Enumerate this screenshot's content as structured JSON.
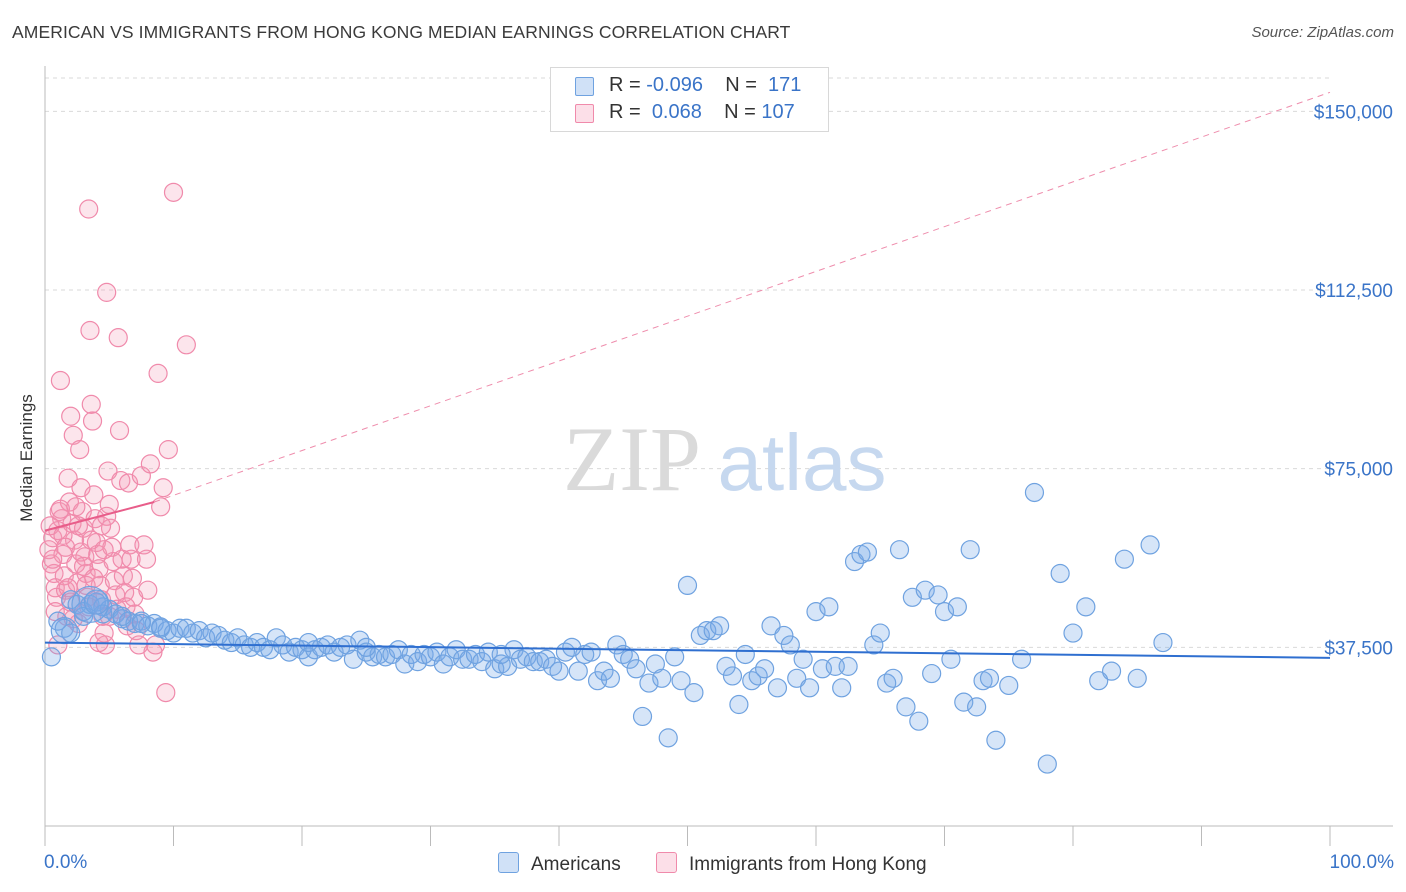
{
  "title": "AMERICAN VS IMMIGRANTS FROM HONG KONG MEDIAN EARNINGS CORRELATION CHART",
  "source": "Source: ZipAtlas.com",
  "watermark": {
    "zip": "ZIP",
    "atlas": "atlas"
  },
  "legend": {
    "r_label": "R =",
    "n_label": "N =",
    "rows": [
      {
        "name": "Americans",
        "r": "-0.096",
        "n": "171",
        "color": "#6fa2e0"
      },
      {
        "name": "Immigrants from Hong Kong",
        "r": "0.068",
        "n": "107",
        "color": "#f08aab"
      }
    ]
  },
  "colors": {
    "blue_fill": "rgba(120,168,232,0.30)",
    "blue_stroke": "#6fa2e0",
    "blue_line": "#2f6fd0",
    "pink_fill": "rgba(245,150,180,0.25)",
    "pink_stroke": "#f08aab",
    "pink_line": "#e85d8a",
    "axis_text": "#3a74c8",
    "grid": "#d9d9d9"
  },
  "chart_data": {
    "type": "scatter",
    "title": "AMERICAN VS IMMIGRANTS FROM HONG KONG MEDIAN EARNINGS CORRELATION CHART",
    "xlabel": "",
    "ylabel": "Median Earnings",
    "x_tick_labels": [
      "0.0%",
      "100.0%"
    ],
    "xlim": [
      0,
      100
    ],
    "ylim": [
      0,
      157000
    ],
    "y_ticks": [
      {
        "value": 37500,
        "label": "$37,500"
      },
      {
        "value": 75000,
        "label": "$75,000"
      },
      {
        "value": 112500,
        "label": "$112,500"
      },
      {
        "value": 150000,
        "label": "$150,000"
      }
    ],
    "grid": true,
    "legend_position": "top-center",
    "series": [
      {
        "name": "Americans",
        "trend": {
          "x0": 0,
          "y0": 38500,
          "x1": 100,
          "y1": 35300,
          "style": "solid"
        },
        "points": [
          [
            0.5,
            35500
          ],
          [
            1.5,
            41500
          ],
          [
            2,
            47500
          ],
          [
            2.5,
            46500
          ],
          [
            3,
            45000
          ],
          [
            3.5,
            46500
          ],
          [
            4,
            47000
          ],
          [
            4.5,
            46000
          ],
          [
            5,
            45500
          ],
          [
            5.5,
            44500
          ],
          [
            6,
            43500
          ],
          [
            6.5,
            43000
          ],
          [
            7,
            42500
          ],
          [
            7.5,
            43000
          ],
          [
            8,
            42000
          ],
          [
            8.5,
            42500
          ],
          [
            9,
            41500
          ],
          [
            9.5,
            41000
          ],
          [
            10,
            40500
          ],
          [
            10.5,
            41500
          ],
          [
            11,
            41500
          ],
          [
            11.5,
            40500
          ],
          [
            12,
            41000
          ],
          [
            12.5,
            39500
          ],
          [
            13,
            40500
          ],
          [
            13.5,
            40000
          ],
          [
            14,
            39000
          ],
          [
            14.5,
            38500
          ],
          [
            15,
            39500
          ],
          [
            15.5,
            38000
          ],
          [
            16,
            37500
          ],
          [
            16.5,
            38500
          ],
          [
            17,
            37500
          ],
          [
            17.5,
            37000
          ],
          [
            18,
            39500
          ],
          [
            18.5,
            38000
          ],
          [
            19,
            36500
          ],
          [
            19.5,
            37500
          ],
          [
            20,
            37000
          ],
          [
            20.5,
            35500
          ],
          [
            21,
            37000
          ],
          [
            21.5,
            37500
          ],
          [
            22,
            38000
          ],
          [
            22.5,
            36500
          ],
          [
            23,
            37500
          ],
          [
            23.5,
            38000
          ],
          [
            24,
            35000
          ],
          [
            24.5,
            39000
          ],
          [
            25,
            36500
          ],
          [
            25.5,
            35500
          ],
          [
            26,
            36000
          ],
          [
            26.5,
            35500
          ],
          [
            27,
            36000
          ],
          [
            27.5,
            37000
          ],
          [
            28,
            34000
          ],
          [
            28.5,
            36000
          ],
          [
            29,
            34500
          ],
          [
            29.5,
            36000
          ],
          [
            30,
            35500
          ],
          [
            30.5,
            36500
          ],
          [
            31,
            34000
          ],
          [
            31.5,
            35500
          ],
          [
            32,
            37000
          ],
          [
            32.5,
            35000
          ],
          [
            33,
            35000
          ],
          [
            33.5,
            36000
          ],
          [
            34,
            34500
          ],
          [
            34.5,
            36500
          ],
          [
            35,
            33000
          ],
          [
            35.5,
            34000
          ],
          [
            36,
            33500
          ],
          [
            36.5,
            37000
          ],
          [
            37,
            35000
          ],
          [
            37.5,
            35500
          ],
          [
            38,
            34500
          ],
          [
            38.5,
            34500
          ],
          [
            39,
            35000
          ],
          [
            39.5,
            33500
          ],
          [
            40,
            32500
          ],
          [
            40.5,
            36500
          ],
          [
            41,
            37500
          ],
          [
            41.5,
            32500
          ],
          [
            42,
            36000
          ],
          [
            42.5,
            36500
          ],
          [
            43,
            30500
          ],
          [
            43.5,
            32500
          ],
          [
            44,
            31000
          ],
          [
            44.5,
            38000
          ],
          [
            45,
            36000
          ],
          [
            45.5,
            35000
          ],
          [
            46,
            33000
          ],
          [
            46.5,
            23000
          ],
          [
            47,
            30000
          ],
          [
            47.5,
            34000
          ],
          [
            48,
            31000
          ],
          [
            48.5,
            18500
          ],
          [
            49,
            35500
          ],
          [
            49.5,
            30500
          ],
          [
            50,
            50500
          ],
          [
            50.5,
            28000
          ],
          [
            51,
            40000
          ],
          [
            51.5,
            41000
          ],
          [
            52,
            41000
          ],
          [
            52.5,
            42000
          ],
          [
            53,
            33500
          ],
          [
            53.5,
            31500
          ],
          [
            54,
            25500
          ],
          [
            54.5,
            36000
          ],
          [
            55,
            30500
          ],
          [
            55.5,
            31500
          ],
          [
            56,
            33000
          ],
          [
            56.5,
            42000
          ],
          [
            57,
            29000
          ],
          [
            57.5,
            40000
          ],
          [
            58,
            38000
          ],
          [
            58.5,
            31000
          ],
          [
            59,
            35000
          ],
          [
            59.5,
            29000
          ],
          [
            60,
            45000
          ],
          [
            60.5,
            33000
          ],
          [
            61,
            46000
          ],
          [
            61.5,
            33500
          ],
          [
            62,
            29000
          ],
          [
            62.5,
            33500
          ],
          [
            63,
            55500
          ],
          [
            63.5,
            57000
          ],
          [
            64,
            57500
          ],
          [
            64.5,
            38000
          ],
          [
            65,
            40500
          ],
          [
            65.5,
            30000
          ],
          [
            66,
            31000
          ],
          [
            66.5,
            58000
          ],
          [
            67,
            25000
          ],
          [
            67.5,
            48000
          ],
          [
            68,
            22000
          ],
          [
            68.5,
            49500
          ],
          [
            69,
            32000
          ],
          [
            69.5,
            48500
          ],
          [
            70,
            45000
          ],
          [
            70.5,
            35000
          ],
          [
            71,
            46000
          ],
          [
            71.5,
            26000
          ],
          [
            72,
            58000
          ],
          [
            72.5,
            25000
          ],
          [
            73,
            30500
          ],
          [
            73.5,
            31000
          ],
          [
            74,
            18000
          ],
          [
            75,
            29500
          ],
          [
            76,
            35000
          ],
          [
            77,
            70000
          ],
          [
            78,
            13000
          ],
          [
            79,
            53000
          ],
          [
            80,
            40500
          ],
          [
            81,
            46000
          ],
          [
            82,
            30500
          ],
          [
            83,
            32500
          ],
          [
            84,
            56000
          ],
          [
            85,
            31000
          ],
          [
            86,
            59000
          ],
          [
            87,
            38500
          ],
          [
            3,
            44000
          ],
          [
            4.5,
            44500
          ],
          [
            6,
            44000
          ],
          [
            7.5,
            42500
          ],
          [
            9,
            41800
          ],
          [
            2,
            40500
          ],
          [
            1,
            43000
          ],
          [
            20.5,
            38500
          ],
          [
            25,
            37500
          ],
          [
            35.5,
            36000
          ]
        ]
      },
      {
        "name": "Immigrants from Hong Kong",
        "trend": {
          "x0": 0,
          "y0": 62000,
          "x1": 8.5,
          "y1": 68000,
          "x2": 100,
          "y2": 154000,
          "style": "solid then dashed"
        },
        "points": [
          [
            0.3,
            58000
          ],
          [
            0.5,
            55000
          ],
          [
            0.6,
            60500
          ],
          [
            0.7,
            53000
          ],
          [
            0.8,
            50000
          ],
          [
            0.9,
            48000
          ],
          [
            1,
            62000
          ],
          [
            1.1,
            66000
          ],
          [
            1.2,
            93500
          ],
          [
            1.3,
            64500
          ],
          [
            1.4,
            57000
          ],
          [
            1.5,
            52500
          ],
          [
            1.6,
            49500
          ],
          [
            1.7,
            44000
          ],
          [
            1.8,
            73000
          ],
          [
            1.9,
            68000
          ],
          [
            2,
            86000
          ],
          [
            2.1,
            63500
          ],
          [
            2.2,
            82000
          ],
          [
            2.3,
            60000
          ],
          [
            2.4,
            55000
          ],
          [
            2.5,
            51000
          ],
          [
            2.6,
            42500
          ],
          [
            2.7,
            79000
          ],
          [
            2.8,
            71000
          ],
          [
            2.9,
            66000
          ],
          [
            3,
            62500
          ],
          [
            3.1,
            56500
          ],
          [
            3.2,
            53000
          ],
          [
            3.3,
            48000
          ],
          [
            3.4,
            129500
          ],
          [
            3.5,
            104000
          ],
          [
            3.6,
            88500
          ],
          [
            3.7,
            85000
          ],
          [
            3.8,
            69500
          ],
          [
            3.9,
            64500
          ],
          [
            4,
            59500
          ],
          [
            4.1,
            57000
          ],
          [
            4.2,
            54000
          ],
          [
            4.3,
            50500
          ],
          [
            4.4,
            47500
          ],
          [
            4.5,
            44000
          ],
          [
            4.6,
            40500
          ],
          [
            4.7,
            38000
          ],
          [
            4.8,
            112000
          ],
          [
            4.9,
            74500
          ],
          [
            5,
            67500
          ],
          [
            5.1,
            62500
          ],
          [
            5.2,
            58500
          ],
          [
            5.3,
            55500
          ],
          [
            5.4,
            51500
          ],
          [
            5.5,
            48500
          ],
          [
            5.6,
            45500
          ],
          [
            5.7,
            102500
          ],
          [
            5.8,
            83000
          ],
          [
            5.9,
            72500
          ],
          [
            6,
            56000
          ],
          [
            6.1,
            52500
          ],
          [
            6.2,
            49000
          ],
          [
            6.3,
            46000
          ],
          [
            6.4,
            42000
          ],
          [
            6.5,
            72000
          ],
          [
            6.6,
            59000
          ],
          [
            6.7,
            56000
          ],
          [
            6.8,
            52000
          ],
          [
            6.9,
            48000
          ],
          [
            7,
            44500
          ],
          [
            7.1,
            41000
          ],
          [
            7.3,
            38000
          ],
          [
            7.5,
            73500
          ],
          [
            7.7,
            59000
          ],
          [
            7.9,
            56000
          ],
          [
            8,
            49500
          ],
          [
            8.2,
            76000
          ],
          [
            8.4,
            36500
          ],
          [
            8.6,
            38000
          ],
          [
            8.8,
            95000
          ],
          [
            9,
            67000
          ],
          [
            9.2,
            71000
          ],
          [
            9.4,
            28000
          ],
          [
            9.6,
            79000
          ],
          [
            10,
            133000
          ],
          [
            11,
            101000
          ],
          [
            0.4,
            63000
          ],
          [
            0.6,
            56000
          ],
          [
            0.8,
            45000
          ],
          [
            1,
            38000
          ],
          [
            1.2,
            66500
          ],
          [
            1.4,
            61000
          ],
          [
            1.6,
            58500
          ],
          [
            1.8,
            50000
          ],
          [
            2,
            47000
          ],
          [
            2.2,
            43500
          ],
          [
            2.4,
            67000
          ],
          [
            2.6,
            63000
          ],
          [
            2.8,
            57500
          ],
          [
            3,
            54500
          ],
          [
            3.2,
            50500
          ],
          [
            3.4,
            46000
          ],
          [
            3.6,
            60000
          ],
          [
            3.8,
            52000
          ],
          [
            4,
            47000
          ],
          [
            4.2,
            38500
          ],
          [
            4.4,
            63000
          ],
          [
            4.6,
            58000
          ],
          [
            4.8,
            65000
          ],
          [
            5,
            44000
          ]
        ]
      }
    ]
  }
}
